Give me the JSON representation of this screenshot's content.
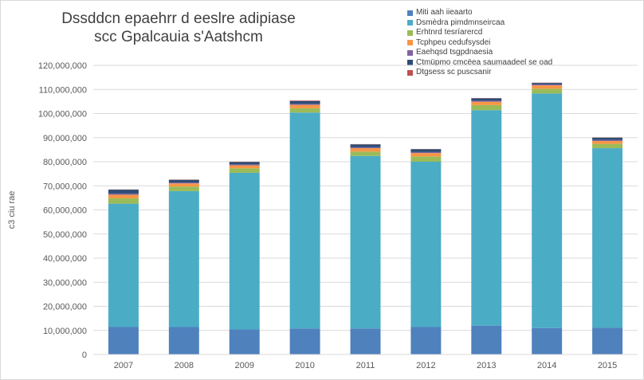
{
  "title_lines": [
    "Dssddcn epaehrr d eeslre adipiase",
    "scc Gpalcauia s'Aatshcm"
  ],
  "chart_data": {
    "type": "bar",
    "stacked": true,
    "title": "Dssddcn epaehrr d eeslre adipiase scc Gpalcauia s'Aatshcm",
    "xlabel": "",
    "ylabel": "c3 ciu rae",
    "ylim": [
      0,
      120000000
    ],
    "ytick_step": 10000000,
    "ytick_labels": [
      "0",
      "10,000,000",
      "20,000,000",
      "30,000,000",
      "40,000,000",
      "50,000,000",
      "60,000,000",
      "70,000,000",
      "80,000,000",
      "90,000,000",
      "100,000,000",
      "110,000,000",
      "120,000,000"
    ],
    "grid": true,
    "legend_position": "top-right",
    "categories": [
      "2007",
      "2008",
      "2009",
      "2010",
      "2011",
      "2012",
      "2013",
      "2014",
      "2015"
    ],
    "series": [
      {
        "name": "Miti aah iieaarto",
        "color": "#4f81bd",
        "values": [
          11400000,
          11400000,
          10400000,
          10800000,
          10800000,
          11400000,
          12000000,
          11000000,
          11100000
        ]
      },
      {
        "name": "Dsmèdra pimdmnseircaa",
        "color": "#4bacc6",
        "values": [
          51200000,
          56400000,
          65000000,
          89600000,
          71600000,
          68600000,
          89400000,
          97300000,
          74500000
        ]
      },
      {
        "name": "Erhtnrd tesríarercd",
        "color": "#9bbb59",
        "values": [
          2200000,
          1900000,
          1900000,
          1800000,
          1800000,
          2200000,
          2100000,
          2000000,
          1800000
        ]
      },
      {
        "name": "Tcphpeu cedufsysdei",
        "color": "#f79646",
        "values": [
          1500000,
          1300000,
          1200000,
          1400000,
          1400000,
          1400000,
          1400000,
          1400000,
          1200000
        ]
      },
      {
        "name": "Eaehqsd tsgpdnaesia",
        "color": "#8064a2",
        "values": [
          500000,
          400000,
          400000,
          400000,
          400000,
          400000,
          400000,
          400000,
          400000
        ]
      },
      {
        "name": "Ctmüpmo cmcëea saumaadeel se oad",
        "color": "#2c4d75",
        "values": [
          1600000,
          1100000,
          1000000,
          1200000,
          1200000,
          1200000,
          1000000,
          600000,
          1000000
        ]
      },
      {
        "name": "Dtgsess sc puscsanir",
        "color": "#c0504d",
        "values": [
          100000,
          100000,
          100000,
          200000,
          100000,
          100000,
          100000,
          100000,
          100000
        ]
      }
    ]
  }
}
